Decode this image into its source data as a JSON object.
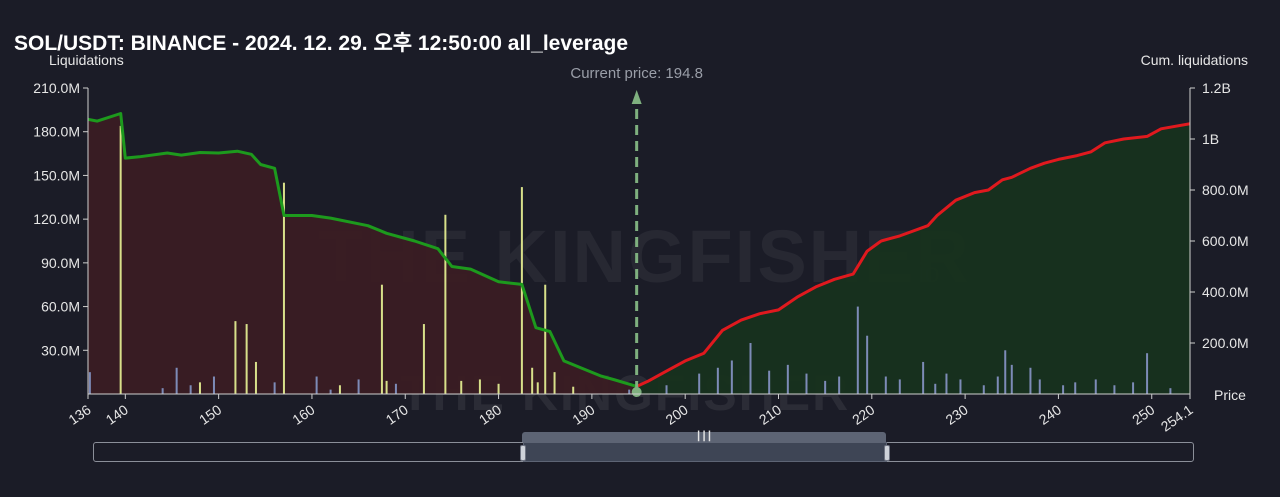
{
  "title": "SOL/USDT: BINANCE - 2024. 12. 29. 오후 12:50:00 all_leverage",
  "watermark": "THE KINGFISHER",
  "watermark_suffix": "io",
  "colors": {
    "background": "#1b1c27",
    "long_cum_line": "#1d9a1d",
    "short_cum_line": "#e0191e",
    "long_area": "#3a1c23",
    "short_area": "#17321e",
    "long_bars": "#d8e08a",
    "short_bars": "#7d8bb7",
    "current_price_marker": "#7fb07f",
    "text": "#e6e6e6"
  },
  "chart_data": {
    "type": "bar+line",
    "title": "SOL/USDT: BINANCE - 2024. 12. 29. 오후 12:50:00 all_leverage",
    "ylabel_left": "Liquidations",
    "ylabel_right": "Cum. liquidations",
    "xlabel": "Price",
    "x_range": [
      136,
      254.1
    ],
    "ylim_left": [
      0,
      210000000
    ],
    "ylim_right": [
      0,
      1200000000
    ],
    "x_ticks": [
      "136",
      "140",
      "150",
      "160",
      "170",
      "180",
      "190",
      "200",
      "210",
      "220",
      "230",
      "240",
      "250",
      "254.1"
    ],
    "y_ticks_left": [
      "30.0M",
      "60.0M",
      "90.0M",
      "120.0M",
      "150.0M",
      "180.0M",
      "210.0M"
    ],
    "y_ticks_left_values": [
      30000000,
      60000000,
      90000000,
      120000000,
      150000000,
      180000000,
      210000000
    ],
    "y_ticks_right": [
      "200.0M",
      "400.0M",
      "600.0M",
      "800.0M",
      "1B",
      "1.2B"
    ],
    "y_ticks_right_values": [
      200000000,
      400000000,
      600000000,
      800000000,
      1000000000,
      1200000000
    ],
    "current_price": 194.8,
    "current_price_label": "Current price: 194.8",
    "long_liquidation_bars": [
      [
        139.5,
        184000000
      ],
      [
        151.8,
        50000000
      ],
      [
        153.0,
        48000000
      ],
      [
        157.0,
        145000000
      ],
      [
        167.5,
        75000000
      ],
      [
        172.0,
        48000000
      ],
      [
        174.3,
        123000000
      ],
      [
        182.5,
        142000000
      ],
      [
        183.6,
        18000000
      ],
      [
        185.0,
        75000000
      ],
      [
        186.0,
        15000000
      ],
      [
        184.2,
        8000000
      ],
      [
        176.0,
        9000000
      ],
      [
        178.0,
        10000000
      ],
      [
        180.0,
        7000000
      ],
      [
        188.0,
        5000000
      ],
      [
        148.0,
        8000000
      ],
      [
        154.0,
        22000000
      ],
      [
        163.0,
        6000000
      ],
      [
        168.0,
        9000000
      ]
    ],
    "short_liquidation_bars": [
      [
        136.2,
        15000000
      ],
      [
        144.0,
        4000000
      ],
      [
        145.5,
        18000000
      ],
      [
        147.0,
        6000000
      ],
      [
        149.5,
        12000000
      ],
      [
        156.0,
        8000000
      ],
      [
        160.5,
        12000000
      ],
      [
        162.0,
        3000000
      ],
      [
        165.0,
        10000000
      ],
      [
        169.0,
        7000000
      ],
      [
        194.0,
        3000000
      ],
      [
        198.0,
        6000000
      ],
      [
        201.5,
        14000000
      ],
      [
        203.5,
        18000000
      ],
      [
        205.0,
        23000000
      ],
      [
        207.0,
        35000000
      ],
      [
        209.0,
        16000000
      ],
      [
        211.0,
        20000000
      ],
      [
        213.0,
        14000000
      ],
      [
        215.0,
        9000000
      ],
      [
        216.5,
        12000000
      ],
      [
        218.5,
        60000000
      ],
      [
        219.5,
        40000000
      ],
      [
        221.5,
        12000000
      ],
      [
        223.0,
        10000000
      ],
      [
        225.5,
        22000000
      ],
      [
        226.8,
        7000000
      ],
      [
        228.0,
        14000000
      ],
      [
        229.5,
        10000000
      ],
      [
        232.0,
        6000000
      ],
      [
        233.5,
        12000000
      ],
      [
        234.3,
        30000000
      ],
      [
        235.0,
        20000000
      ],
      [
        237.0,
        18000000
      ],
      [
        238.0,
        10000000
      ],
      [
        240.5,
        6000000
      ],
      [
        241.8,
        8000000
      ],
      [
        244.0,
        10000000
      ],
      [
        246.0,
        6000000
      ],
      [
        248.0,
        8000000
      ],
      [
        249.5,
        28000000
      ],
      [
        252.0,
        4000000
      ]
    ],
    "long_cumulative_line": [
      [
        136,
        1077000000
      ],
      [
        137,
        1070000000
      ],
      [
        139.5,
        1100000000
      ],
      [
        140,
        925000000
      ],
      [
        141.5,
        930000000
      ],
      [
        144.5,
        945000000
      ],
      [
        146,
        937000000
      ],
      [
        148,
        947000000
      ],
      [
        150,
        945000000
      ],
      [
        152,
        952000000
      ],
      [
        153.5,
        940000000
      ],
      [
        154.5,
        900000000
      ],
      [
        156,
        885000000
      ],
      [
        157,
        700000000
      ],
      [
        160,
        700000000
      ],
      [
        162,
        690000000
      ],
      [
        166,
        660000000
      ],
      [
        168,
        630000000
      ],
      [
        171,
        600000000
      ],
      [
        173.5,
        570000000
      ],
      [
        175,
        500000000
      ],
      [
        177,
        490000000
      ],
      [
        180,
        440000000
      ],
      [
        182.5,
        430000000
      ],
      [
        184,
        260000000
      ],
      [
        185.5,
        245000000
      ],
      [
        187,
        130000000
      ],
      [
        189,
        100000000
      ],
      [
        191,
        70000000
      ],
      [
        192.5,
        55000000
      ],
      [
        194.8,
        30000000
      ]
    ],
    "short_cumulative_line": [
      [
        194.8,
        30000000
      ],
      [
        196,
        50000000
      ],
      [
        198,
        90000000
      ],
      [
        200,
        130000000
      ],
      [
        202,
        160000000
      ],
      [
        204,
        250000000
      ],
      [
        206,
        290000000
      ],
      [
        208,
        315000000
      ],
      [
        210,
        330000000
      ],
      [
        212,
        380000000
      ],
      [
        214,
        420000000
      ],
      [
        216,
        450000000
      ],
      [
        218,
        470000000
      ],
      [
        219.5,
        560000000
      ],
      [
        221,
        600000000
      ],
      [
        223,
        620000000
      ],
      [
        226,
        660000000
      ],
      [
        227,
        700000000
      ],
      [
        229,
        760000000
      ],
      [
        231,
        790000000
      ],
      [
        232.5,
        800000000
      ],
      [
        234,
        840000000
      ],
      [
        235,
        850000000
      ],
      [
        237,
        885000000
      ],
      [
        238.5,
        905000000
      ],
      [
        240,
        920000000
      ],
      [
        242,
        935000000
      ],
      [
        243.5,
        950000000
      ],
      [
        245,
        985000000
      ],
      [
        247,
        1000000000
      ],
      [
        249.5,
        1010000000
      ],
      [
        251,
        1040000000
      ],
      [
        254.1,
        1060000000
      ]
    ]
  },
  "range_slider": {
    "handle_icon": "grip-lines-icon",
    "window_start": 0.39,
    "window_end": 0.72
  }
}
